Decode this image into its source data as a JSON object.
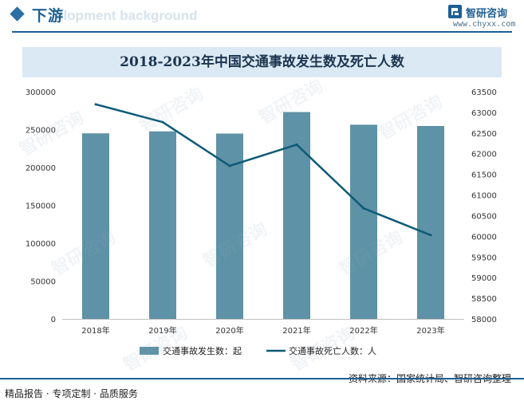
{
  "header": {
    "title": "下游",
    "bg_text": "elopment background"
  },
  "brand": {
    "name": "智研咨询",
    "url": "www.chyxx.com",
    "watermark": "智研咨询"
  },
  "source_text": "资料来源：国家统计局、智研咨询整理",
  "footer_text": "精品报告 · 专项定制 · 品质服务",
  "colors": {
    "bar": "#5e92a6",
    "line": "#0e5a78",
    "accent": "#1f5f94"
  },
  "chart_data": {
    "type": "bar+line",
    "title": "2018-2023年中国交通事故发生数及死亡人数",
    "categories": [
      "2018年",
      "2019年",
      "2020年",
      "2021年",
      "2022年",
      "2023年"
    ],
    "series": [
      {
        "name": "交通事故发生数：起",
        "type": "bar",
        "axis": "left",
        "values": [
          245000,
          247600,
          244700,
          273100,
          256400,
          254700
        ]
      },
      {
        "name": "交通事故死亡人数：人",
        "type": "line",
        "axis": "right",
        "values": [
          63194,
          62763,
          61703,
          62218,
          60676,
          60028
        ]
      }
    ],
    "y_left": {
      "min": 0,
      "max": 300000,
      "step": 50000,
      "ticks": [
        "0",
        "50000",
        "100000",
        "150000",
        "200000",
        "250000",
        "300000"
      ]
    },
    "y_right": {
      "min": 58000,
      "max": 63500,
      "step": 500,
      "ticks": [
        "58000",
        "58500",
        "59000",
        "59500",
        "60000",
        "60500",
        "61000",
        "61500",
        "62000",
        "62500",
        "63000",
        "63500"
      ]
    },
    "legend_position": "bottom"
  }
}
